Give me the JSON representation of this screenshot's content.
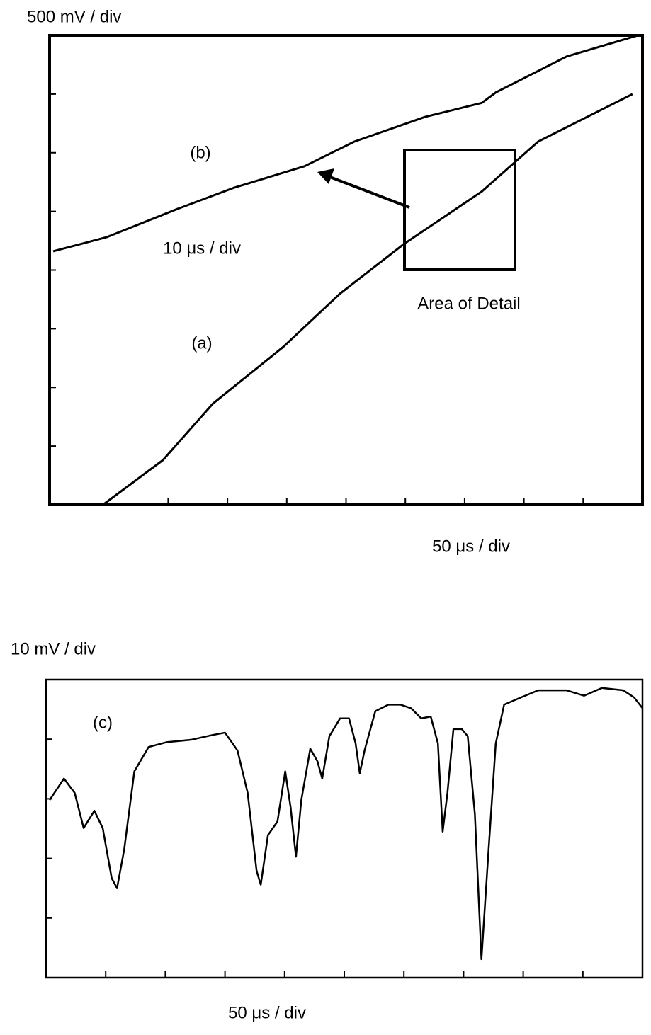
{
  "chart_data": [
    {
      "type": "line",
      "y_label": "500 mV / div",
      "x_label": "50 μs / div",
      "annotations": [
        "10 μs / div",
        "Area of Detail"
      ],
      "xlim": [
        0,
        10
      ],
      "ylim": [
        0,
        8
      ],
      "xticks": [
        2,
        3,
        4,
        5,
        6,
        7,
        8,
        9
      ],
      "yticks": [
        1,
        2,
        3,
        4,
        5,
        6,
        7
      ],
      "series": [
        {
          "name": "(a)",
          "color": "#000000",
          "x": [
            0.9,
            1.91,
            2.75,
            3.94,
            4.9,
            5.97,
            7.29,
            8.24,
            9.83
          ],
          "values": [
            0,
            0.76,
            1.72,
            2.69,
            3.6,
            4.44,
            5.34,
            6.19,
            7.0
          ]
        },
        {
          "name": "(b)",
          "color": "#000000",
          "x": [
            0.06,
            0.96,
            2.15,
            3.1,
            4.3,
            5.14,
            6.33,
            7.29,
            7.53,
            8.72,
            9.92
          ],
          "values": [
            4.32,
            4.56,
            5.04,
            5.4,
            5.77,
            6.19,
            6.61,
            6.85,
            7.03,
            7.64,
            8.0
          ]
        }
      ]
    },
    {
      "type": "line",
      "y_label": "10 mV / div",
      "x_label": "50 μs / div",
      "xlim": [
        0,
        10
      ],
      "ylim": [
        0,
        5
      ],
      "xticks": [
        1,
        2,
        3,
        4,
        5,
        6,
        7,
        8,
        9
      ],
      "yticks": [
        1,
        2,
        3,
        4
      ],
      "series": [
        {
          "name": "(c)",
          "color": "#000000",
          "x": [
            0.06,
            0.3,
            0.48,
            0.63,
            0.81,
            0.95,
            1.1,
            1.19,
            1.31,
            1.48,
            1.72,
            2.02,
            2.43,
            2.79,
            3.0,
            3.21,
            3.38,
            3.53,
            3.6,
            3.72,
            3.88,
            4.01,
            4.1,
            4.19,
            4.28,
            4.43,
            4.55,
            4.63,
            4.75,
            4.93,
            5.08,
            5.19,
            5.26,
            5.34,
            5.52,
            5.74,
            5.94,
            6.12,
            6.29,
            6.45,
            6.57,
            6.65,
            6.73,
            6.83,
            6.97,
            7.07,
            7.19,
            7.3,
            7.42,
            7.54,
            7.68,
            7.96,
            8.25,
            8.73,
            9.02,
            9.32,
            9.68,
            9.86,
            10.0
          ],
          "values": [
            2.98,
            3.34,
            3.1,
            2.51,
            2.8,
            2.51,
            1.67,
            1.5,
            2.15,
            3.46,
            3.87,
            3.95,
            3.99,
            4.07,
            4.11,
            3.81,
            3.1,
            1.79,
            1.56,
            2.39,
            2.62,
            3.46,
            2.86,
            2.03,
            2.98,
            3.84,
            3.63,
            3.34,
            4.05,
            4.35,
            4.35,
            3.93,
            3.43,
            3.81,
            4.47,
            4.58,
            4.58,
            4.52,
            4.35,
            4.38,
            3.93,
            2.45,
            3.1,
            4.17,
            4.17,
            4.05,
            2.74,
            0.31,
            2.15,
            3.93,
            4.58,
            4.7,
            4.82,
            4.82,
            4.73,
            4.86,
            4.82,
            4.7,
            4.52
          ]
        }
      ]
    }
  ]
}
